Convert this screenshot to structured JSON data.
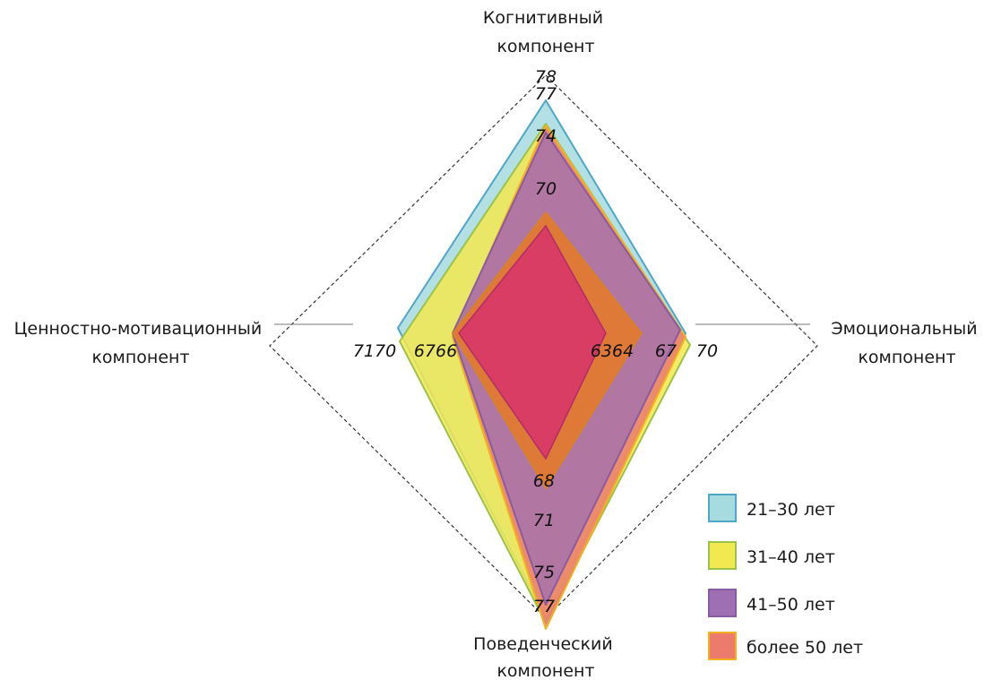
{
  "chart_data": {
    "type": "radar",
    "axes": [
      "Когнитивный компонент",
      "Эмоциональный компонент",
      "Поведенческий компонент",
      "Ценностно-мотивационный компонент"
    ],
    "axis_title_lines": [
      [
        "Когнитивный",
        "компонент"
      ],
      [
        "Эмоциональный",
        "компонент"
      ],
      [
        "Поведенческий",
        "компонент"
      ],
      [
        "Ценностно-мотивационный",
        "компонент"
      ]
    ],
    "series": [
      {
        "name": "21–30 лет",
        "values": [
          77,
          63,
          75,
          71
        ]
      },
      {
        "name": "31–40 лет",
        "values": [
          74,
          64,
          75,
          70
        ]
      },
      {
        "name": "41–50 лет",
        "values": [
          74,
          63,
          71,
          66
        ]
      },
      {
        "name": "более 50 лет",
        "values": [
          74,
          67,
          75,
          67
        ]
      }
    ],
    "value_labels": {
      "top": [
        "78",
        "77",
        "74",
        "70"
      ],
      "right": [
        "6364",
        "67",
        "70"
      ],
      "bottom": [
        "68",
        "71",
        "75",
        "77"
      ],
      "left": [
        "7170",
        "6766"
      ]
    },
    "colors": {
      "21–30 лет": "#a6dbe0",
      "31–40 лет": "#f2e84f",
      "41–50 лет": "#9e6fb3",
      "более 50 лет": "#ec7b6d"
    },
    "stroke_colors": {
      "21–30 лет": "#4fa6c6",
      "31–40 лет": "#9bc24a",
      "41–50 лет": "#8a5aa3",
      "более 50 лет": "#f2b21e"
    },
    "legend_position": "bottom-right",
    "grid": "dashed outer rhombus"
  }
}
